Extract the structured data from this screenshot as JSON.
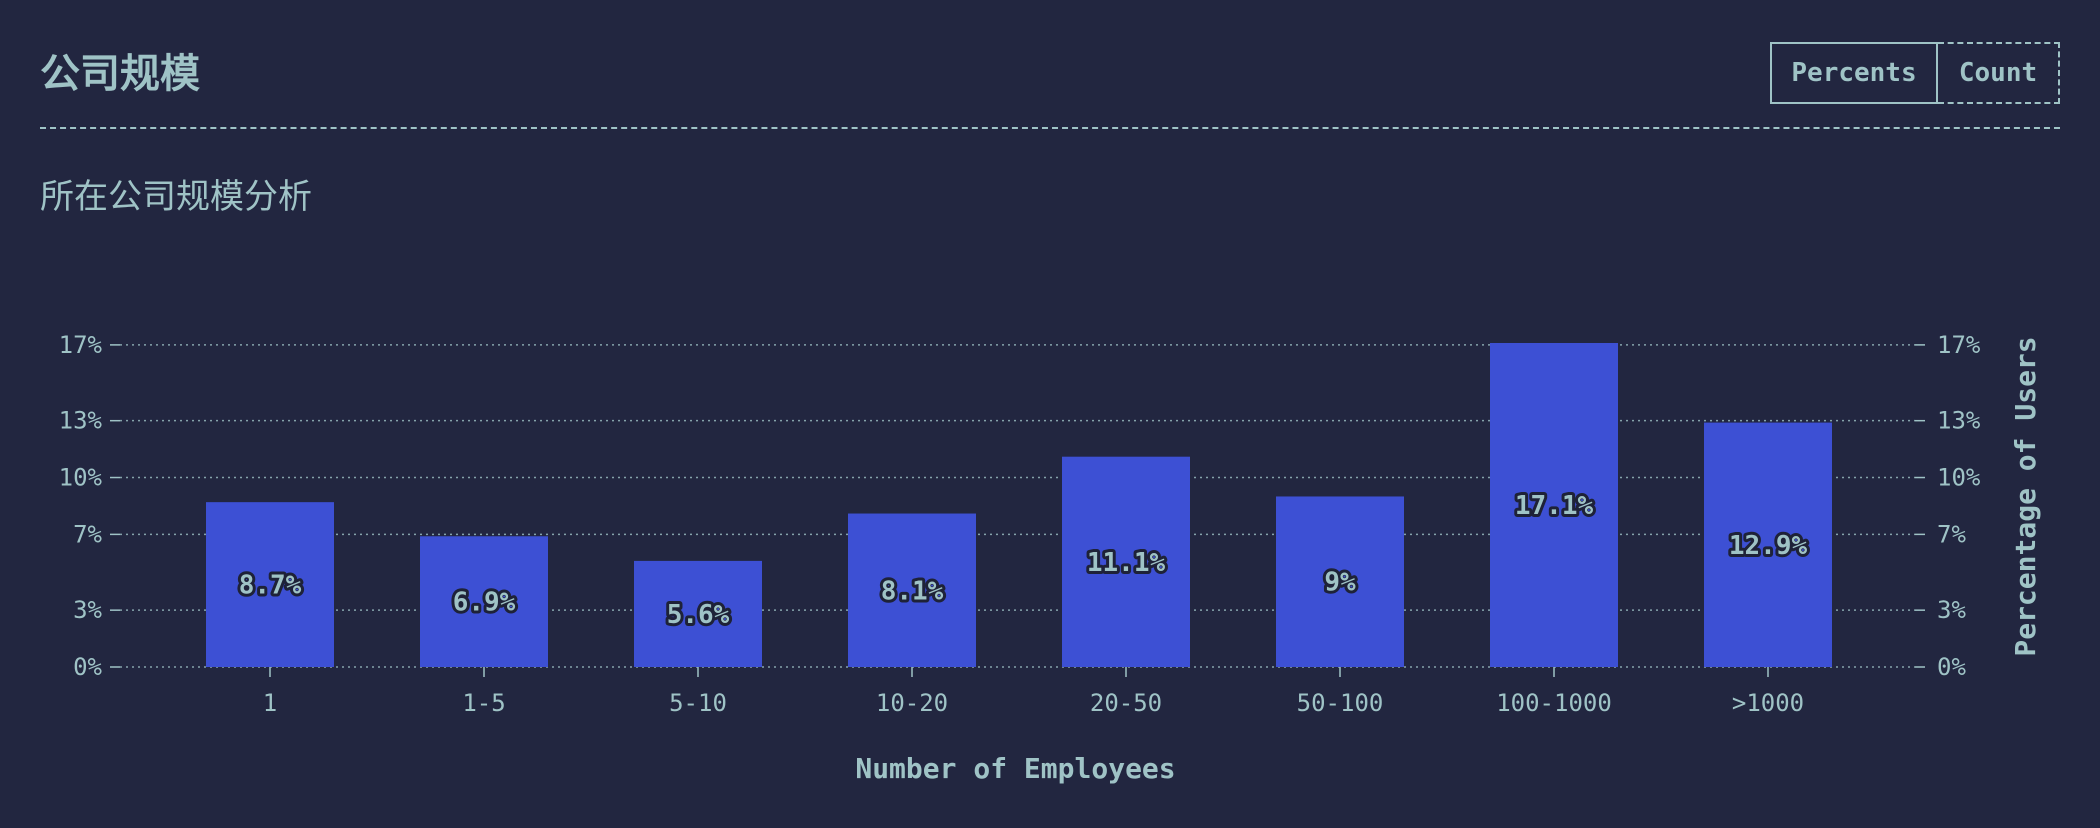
{
  "header": {
    "title": "公司规模",
    "toggle": {
      "percents_label": "Percents",
      "count_label": "Count"
    }
  },
  "subtitle": "所在公司规模分析",
  "colors": {
    "background": "#222640",
    "bar": "#3d50d4",
    "text": "#9fc3c6",
    "label_outline": "#1e2238"
  },
  "chart_data": {
    "type": "bar",
    "categories": [
      "1",
      "1-5",
      "5-10",
      "10-20",
      "20-50",
      "50-100",
      "100-1000",
      ">1000"
    ],
    "values": [
      8.7,
      6.9,
      5.6,
      8.1,
      11.1,
      9,
      17.1,
      12.9
    ],
    "value_labels": [
      "8.7%",
      "6.9%",
      "5.6%",
      "8.1%",
      "11.1%",
      "9%",
      "17.1%",
      "12.9%"
    ],
    "xlabel": "Number of Employees",
    "ylabel": "Percentage of Users",
    "ylim": [
      0,
      17.1
    ],
    "y_ticks": [
      0,
      3,
      7,
      10,
      13,
      17
    ],
    "y_tick_labels": [
      "0%",
      "3%",
      "7%",
      "10%",
      "13%",
      "17%"
    ],
    "grid": true,
    "grid_style": "dotted",
    "right_axis_mirrored": true
  }
}
